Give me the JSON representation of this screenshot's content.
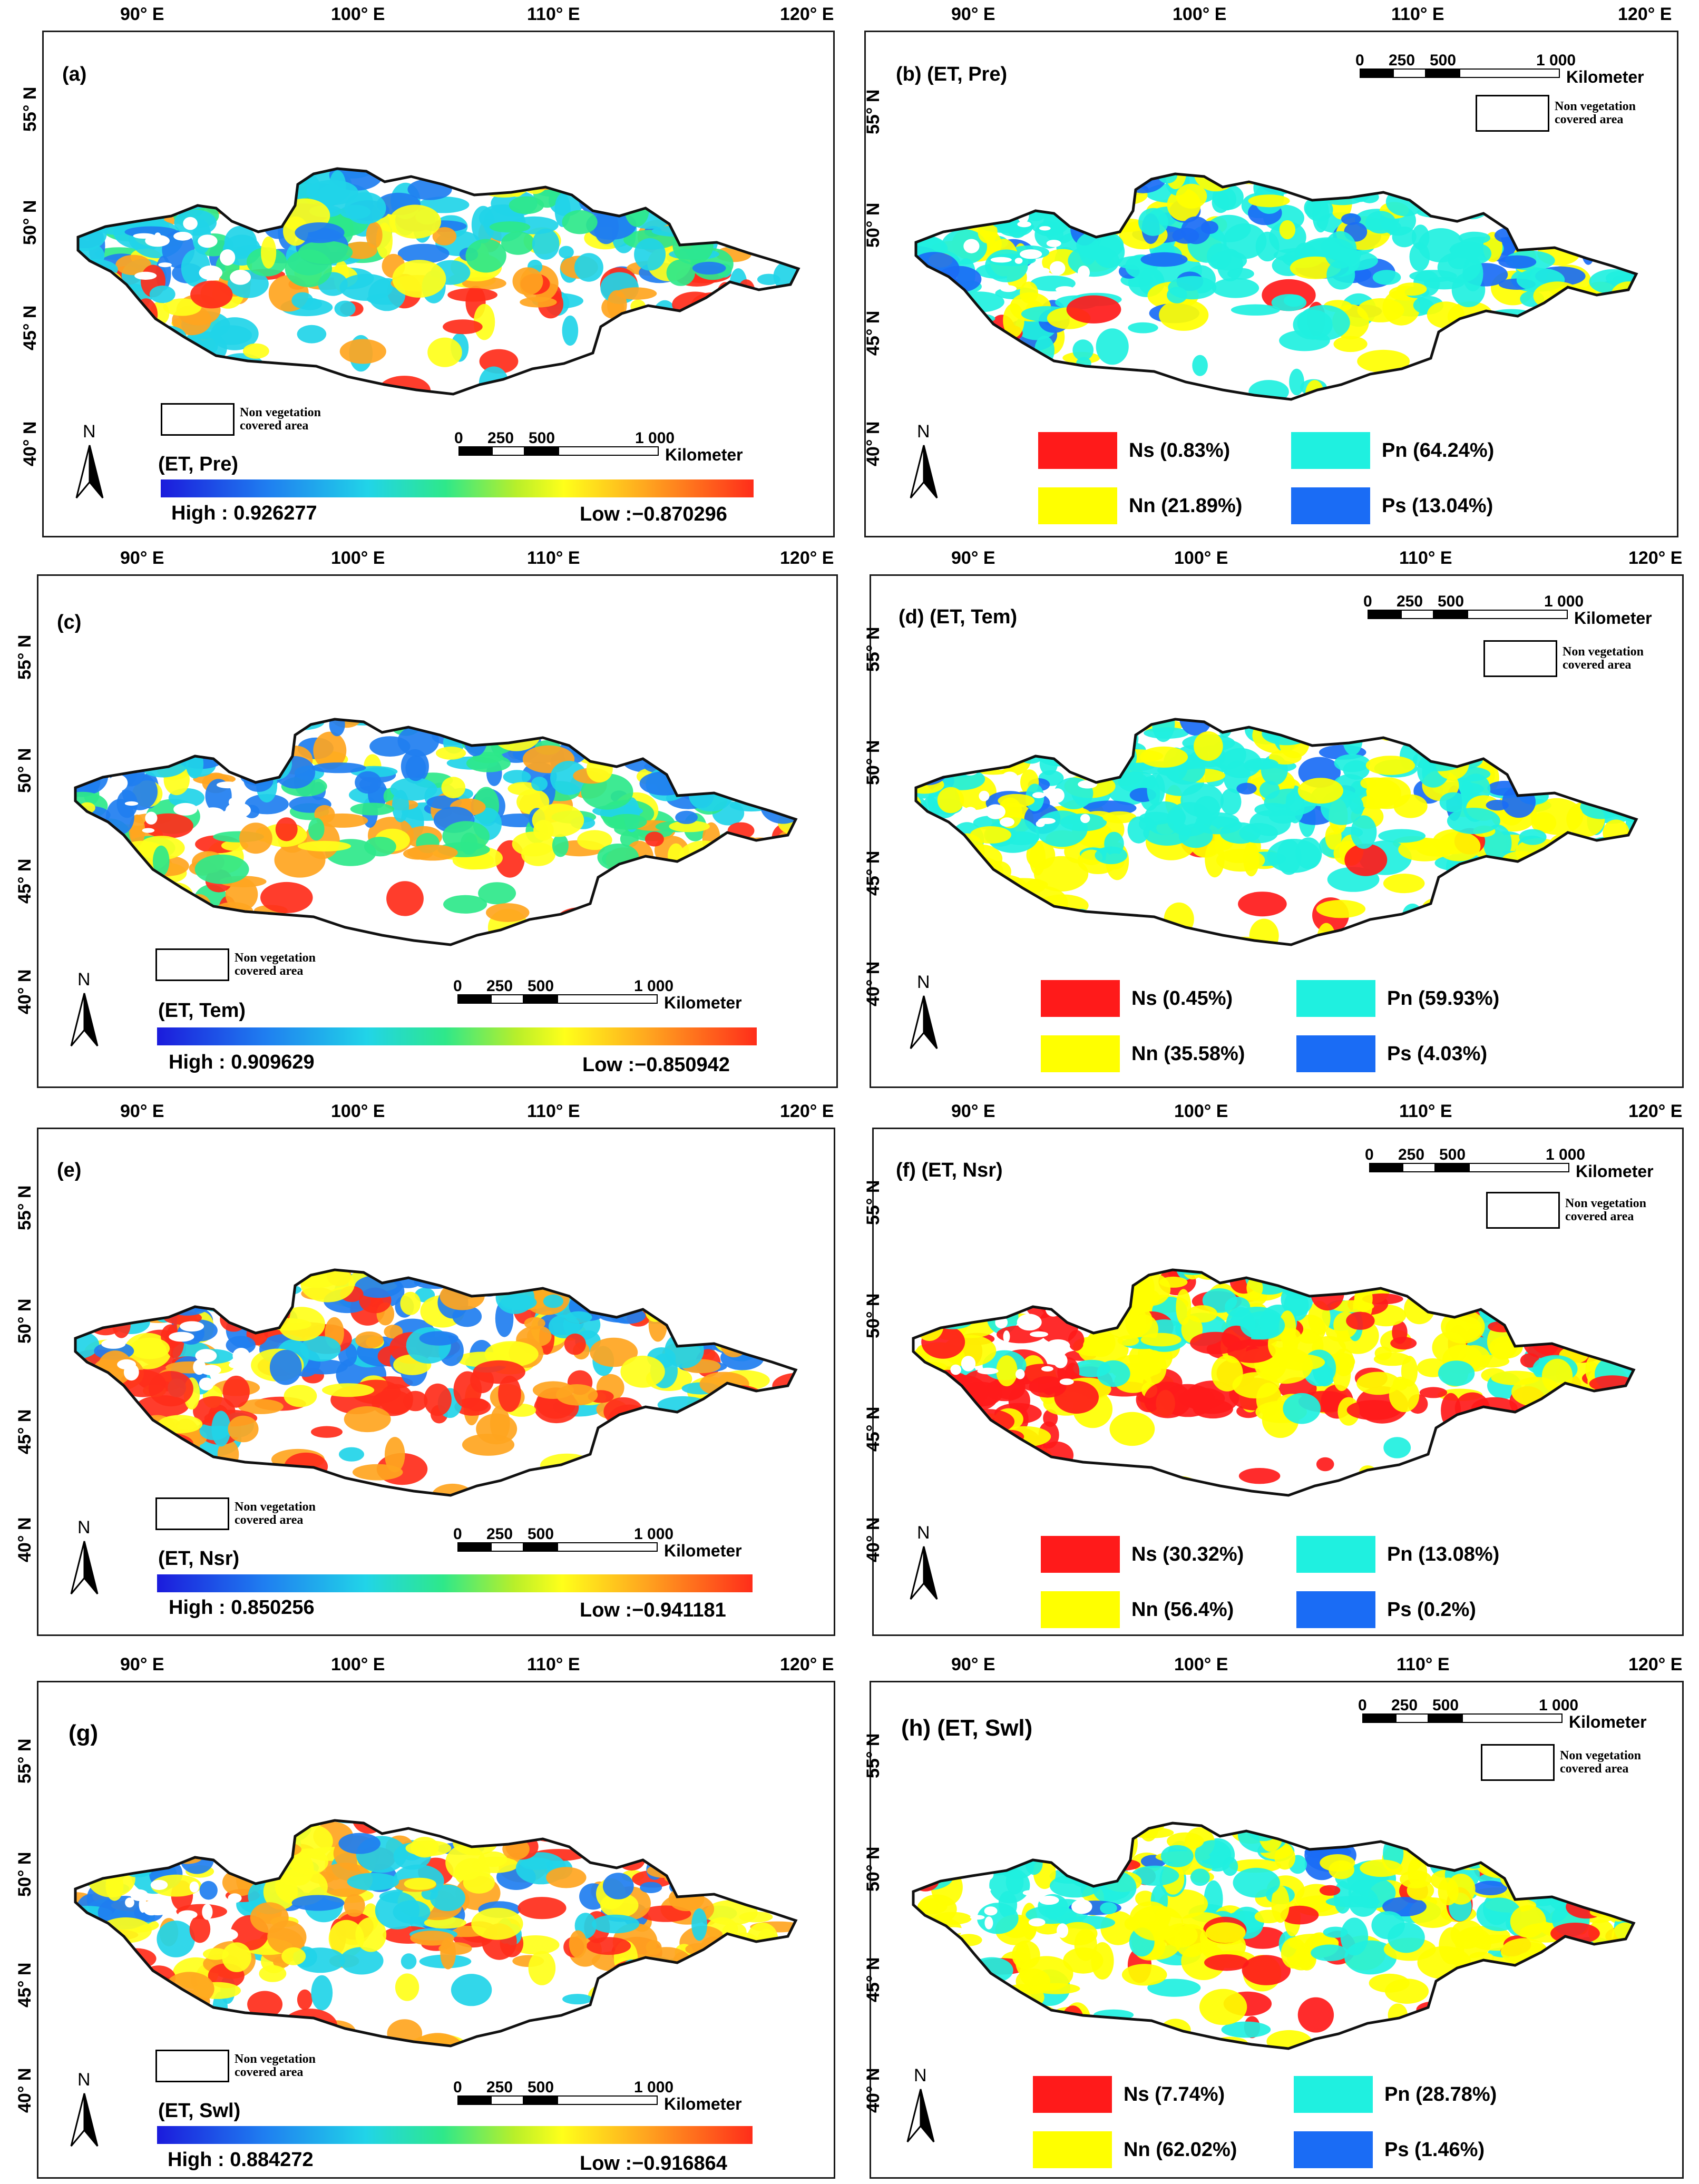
{
  "longitude_ticks": [
    "90° E",
    "100° E",
    "110° E",
    "120° E"
  ],
  "latitude_ticks": [
    "55° N",
    "50° N",
    "45° N",
    "40° N"
  ],
  "non_vegetation_label_line1": "Non vegetation",
  "non_vegetation_label_line2": "covered area",
  "scale_numbers": [
    "0",
    "250",
    "500",
    "1 000"
  ],
  "scale_unit": "Kilometer",
  "north_label": "N",
  "category_colors": {
    "Ns": "#ff1a1a",
    "Nn": "#ffff00",
    "Pn": "#1ff0e0",
    "Ps": "#1a6cf5"
  },
  "gradient_colors": [
    "#1b1bdc",
    "#1f7ef0",
    "#21d4e8",
    "#2ee88a",
    "#b8ef2a",
    "#ffff1a",
    "#ffa51f",
    "#ff2d1a"
  ],
  "left_panels": [
    {
      "tag": "(a)",
      "et_label": "(ET, Pre)",
      "high_label": "High : 0.926277",
      "low_label": "Low :−0.870296",
      "high_value": 0.926277,
      "low_value": -0.870296
    },
    {
      "tag": "(c)",
      "et_label": "(ET, Tem)",
      "high_label": "High : 0.909629",
      "low_label": "Low :−0.850942",
      "high_value": 0.909629,
      "low_value": -0.850942
    },
    {
      "tag": "(e)",
      "et_label": "(ET, Nsr)",
      "high_label": "High : 0.850256",
      "low_label": "Low :−0.941181",
      "high_value": 0.850256,
      "low_value": -0.941181
    },
    {
      "tag": "(g)",
      "et_label": "(ET, Swl)",
      "high_label": "High : 0.884272",
      "low_label": "Low :−0.916864",
      "high_value": 0.884272,
      "low_value": -0.916864
    }
  ],
  "right_panels": [
    {
      "title": "(b) (ET, Pre)",
      "legend": [
        "Ns (0.83%)",
        "Pn (64.24%)",
        "Nn (21.89%)",
        "Ps (13.04%)"
      ]
    },
    {
      "title": "(d) (ET, Tem)",
      "legend": [
        "Ns (0.45%)",
        "Pn (59.93%)",
        "Nn (35.58%)",
        "Ps (4.03%)"
      ]
    },
    {
      "title": "(f)  (ET, Nsr)",
      "legend": [
        "Ns (30.32%)",
        "Pn (13.08%)",
        "Nn (56.4%)",
        "Ps (0.2%)"
      ]
    },
    {
      "title": "(h) (ET, Swl)",
      "legend": [
        "Ns (7.74%)",
        "Pn (28.78%)",
        "Nn (62.02%)",
        "Ps (1.46%)"
      ]
    }
  ]
}
